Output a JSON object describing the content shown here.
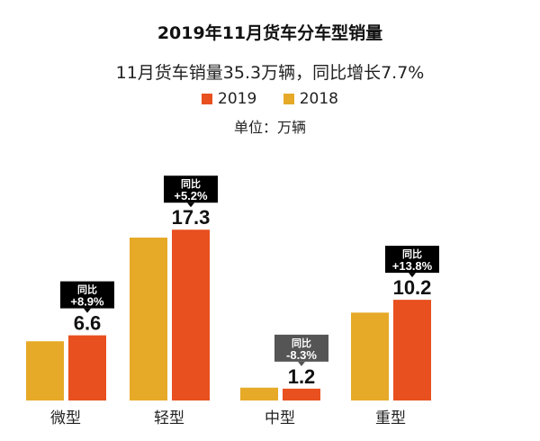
{
  "chart_data": {
    "type": "bar",
    "title": "2019年11月货车分车型销量",
    "subtitle": "11月货车销量35.3万辆，同比增长7.7%",
    "unit_label": "单位：万辆",
    "categories": [
      "微型",
      "轻型",
      "中型",
      "重型"
    ],
    "series": [
      {
        "name": "2019",
        "color": "#E8501F",
        "values": [
          6.6,
          17.3,
          1.2,
          10.2
        ]
      },
      {
        "name": "2018",
        "color": "#E6AA28",
        "values": [
          6.0,
          16.5,
          1.3,
          8.9
        ]
      }
    ],
    "yoy": [
      {
        "label": "同比",
        "value": "+8.9%",
        "negative": false
      },
      {
        "label": "同比",
        "value": "+5.2%",
        "negative": false
      },
      {
        "label": "同比",
        "value": "-8.3%",
        "negative": true
      },
      {
        "label": "同比",
        "value": "+13.8%",
        "negative": false
      }
    ],
    "ylim": [
      0,
      20
    ],
    "grid": false,
    "legend_placement": "top-center"
  }
}
